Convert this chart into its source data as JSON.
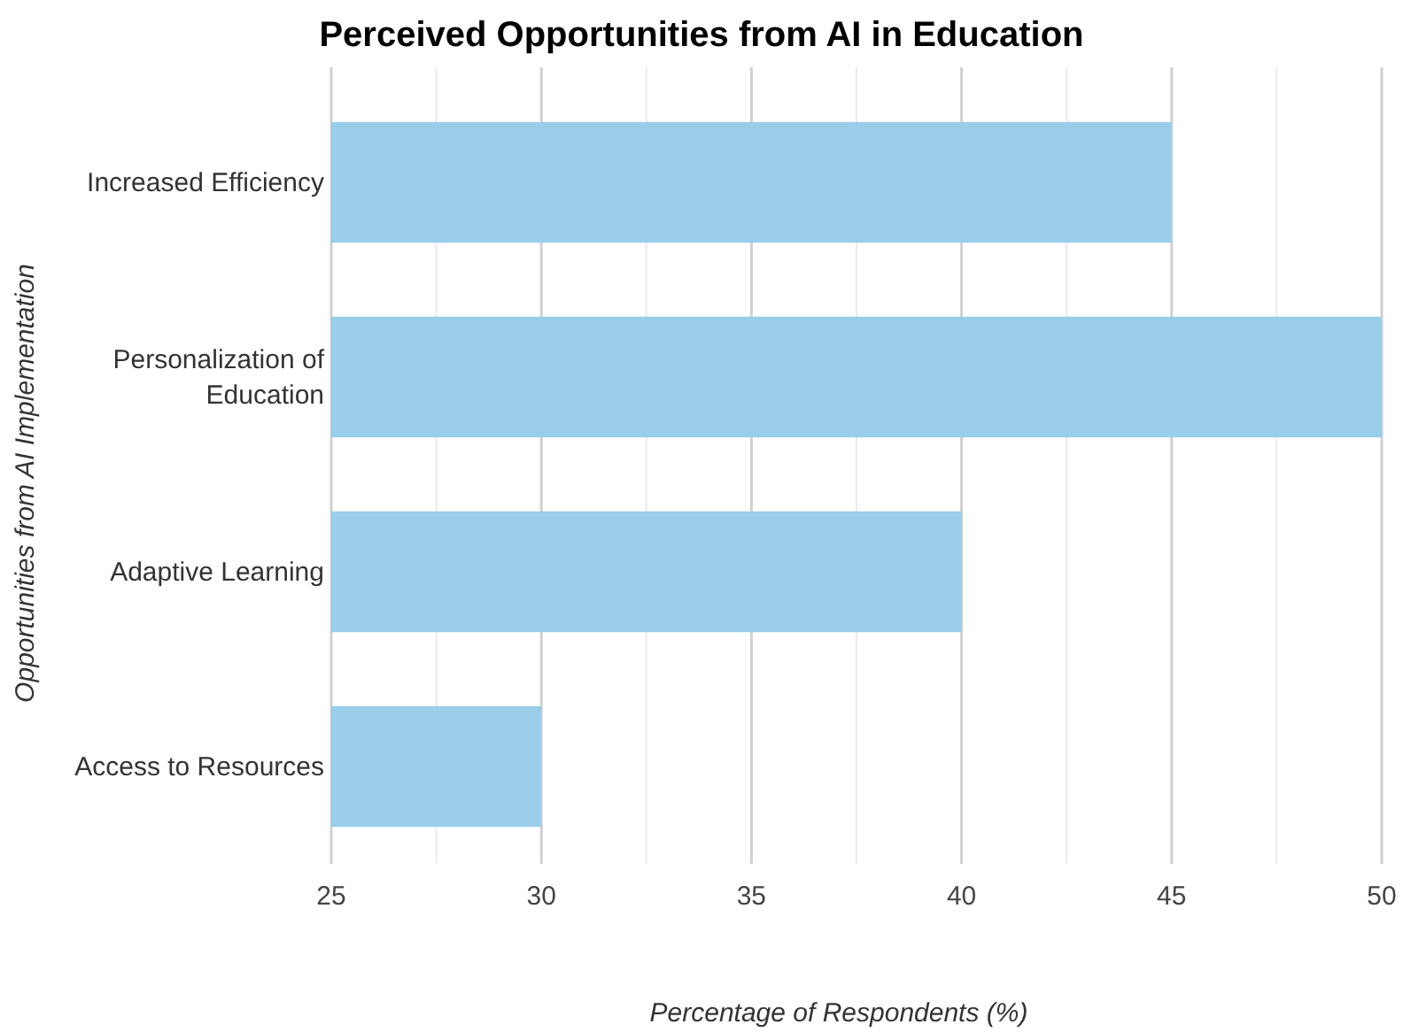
{
  "chart_data": {
    "type": "bar",
    "orientation": "horizontal",
    "title": "Perceived Opportunities from AI in Education",
    "xlabel": "Percentage of Respondents (%)",
    "ylabel": "Opportunities from AI Implementation",
    "categories": [
      "Increased Efficiency",
      "Personalization of Education",
      "Adaptive Learning",
      "Access to Resources"
    ],
    "values": [
      45,
      50,
      40,
      30
    ],
    "color": "#99cde9",
    "xlim": [
      25,
      50
    ],
    "xticks": [
      25,
      {
        "value": 27.5,
        "label": null
      },
      30,
      {
        "value": 32.5,
        "label": null
      },
      35,
      {
        "value": 37.5,
        "label": null
      },
      40,
      {
        "value": 42.5,
        "label": null
      },
      45,
      {
        "value": 47.5,
        "label": null
      },
      50
    ],
    "grid": "x"
  }
}
